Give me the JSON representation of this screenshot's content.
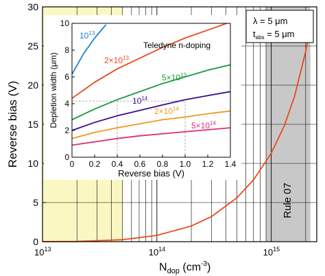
{
  "chart_data": [
    {
      "type": "line",
      "x_scale": "log",
      "xlim": [
        10000000000000.0,
        2500000000000000.0
      ],
      "ylim": [
        0,
        30
      ],
      "xlabel_main": "N",
      "xlabel_sub": "dop",
      "xlabel_unit": " (cm",
      "xlabel_exp": "-3",
      "xlabel_close": ")",
      "ylabel": "Reverse bias (V)",
      "x_ticks_major": [
        {
          "value": 10000000000000.0,
          "base": "10",
          "exp": "13"
        },
        {
          "value": 100000000000000.0,
          "base": "10",
          "exp": "14"
        },
        {
          "value": 1000000000000000.0,
          "base": "10",
          "exp": "15"
        }
      ],
      "y_ticks": [
        "0",
        "5",
        "10",
        "15",
        "20",
        "25",
        "30"
      ],
      "grid": true,
      "highlight_band": {
        "x_from": 10000000000000.0,
        "x_to": 50000000000000.0,
        "color": "#fbf7c2"
      },
      "rule_band": {
        "x_from": 900000000000000.0,
        "x_to": 2200000000000000.0,
        "color": "#c8c8c8",
        "label": "Rule 07"
      },
      "series": [
        {
          "color": "#e8491a",
          "x": [
            10000000000000.0,
            20000000000000.0,
            50000000000000.0,
            100000000000000.0,
            200000000000000.0,
            300000000000000.0,
            500000000000000.0,
            700000000000000.0,
            1000000000000000.0,
            1300000000000000.0,
            1600000000000000.0,
            2000000000000000.0,
            2300000000000000.0
          ],
          "y": [
            0.01,
            0.03,
            0.25,
            0.8,
            2.0,
            3.2,
            5.6,
            7.9,
            11.3,
            14.8,
            18.6,
            24.3,
            29.0
          ]
        }
      ],
      "legend_box": {
        "line1_symbol": "λ",
        "line1_text": " = 5 μm",
        "line2_main": "t",
        "line2_sub": "abs",
        "line2_text": " = 5 μm"
      }
    },
    {
      "type": "line",
      "xlim": [
        0,
        1.4
      ],
      "ylim": [
        0,
        10
      ],
      "xlabel": "Reverse bias (V)",
      "ylabel": "Depletion width (μm)",
      "x_ticks": [
        "0",
        "0.2",
        "0.4",
        "0.6",
        "0.8",
        "1.0",
        "1.2",
        "1.4"
      ],
      "y_ticks": [
        "0",
        "2",
        "4",
        "6",
        "8",
        "10"
      ],
      "annotation": "Teledyne n-doping",
      "series": [
        {
          "label_base": "10",
          "label_exp": "13",
          "color": "#1a7fd4",
          "x": [
            0,
            0.1,
            0.2,
            0.3
          ],
          "y": [
            6.2,
            7.7,
            8.9,
            9.9
          ]
        },
        {
          "label_base": "2×10",
          "label_exp": "13",
          "color": "#e8491a",
          "x": [
            0,
            0.2,
            0.4,
            0.6,
            0.8,
            1.0,
            1.2,
            1.4
          ],
          "y": [
            4.4,
            5.6,
            6.6,
            7.4,
            8.2,
            8.9,
            9.5,
            10.1
          ]
        },
        {
          "label_base": "5×10",
          "label_exp": "13",
          "color": "#159a3a",
          "x": [
            0,
            0.2,
            0.4,
            0.6,
            0.8,
            1.0,
            1.2,
            1.4
          ],
          "y": [
            2.8,
            3.6,
            4.3,
            4.9,
            5.5,
            6.0,
            6.5,
            6.9
          ]
        },
        {
          "label_base": "10",
          "label_exp": "14",
          "color": "#3a0d8a",
          "x": [
            0,
            0.2,
            0.4,
            0.6,
            0.8,
            1.0,
            1.2,
            1.4
          ],
          "y": [
            2.0,
            2.6,
            3.1,
            3.5,
            3.9,
            4.3,
            4.6,
            4.9
          ]
        },
        {
          "label_base": "2×10",
          "label_exp": "14",
          "color": "#f2961d",
          "x": [
            0,
            0.2,
            0.4,
            0.6,
            0.8,
            1.0,
            1.2,
            1.4
          ],
          "y": [
            1.4,
            1.85,
            2.2,
            2.5,
            2.8,
            3.0,
            3.25,
            3.45
          ]
        },
        {
          "label_base": "5×10",
          "label_exp": "14",
          "color": "#e02a7a",
          "x": [
            0,
            0.2,
            0.4,
            0.6,
            0.8,
            1.0,
            1.2,
            1.4
          ],
          "y": [
            0.9,
            1.15,
            1.4,
            1.6,
            1.75,
            1.9,
            2.05,
            2.2
          ]
        }
      ],
      "reference_x": [
        0.4,
        1.0
      ],
      "reference_y": 4.2
    }
  ]
}
